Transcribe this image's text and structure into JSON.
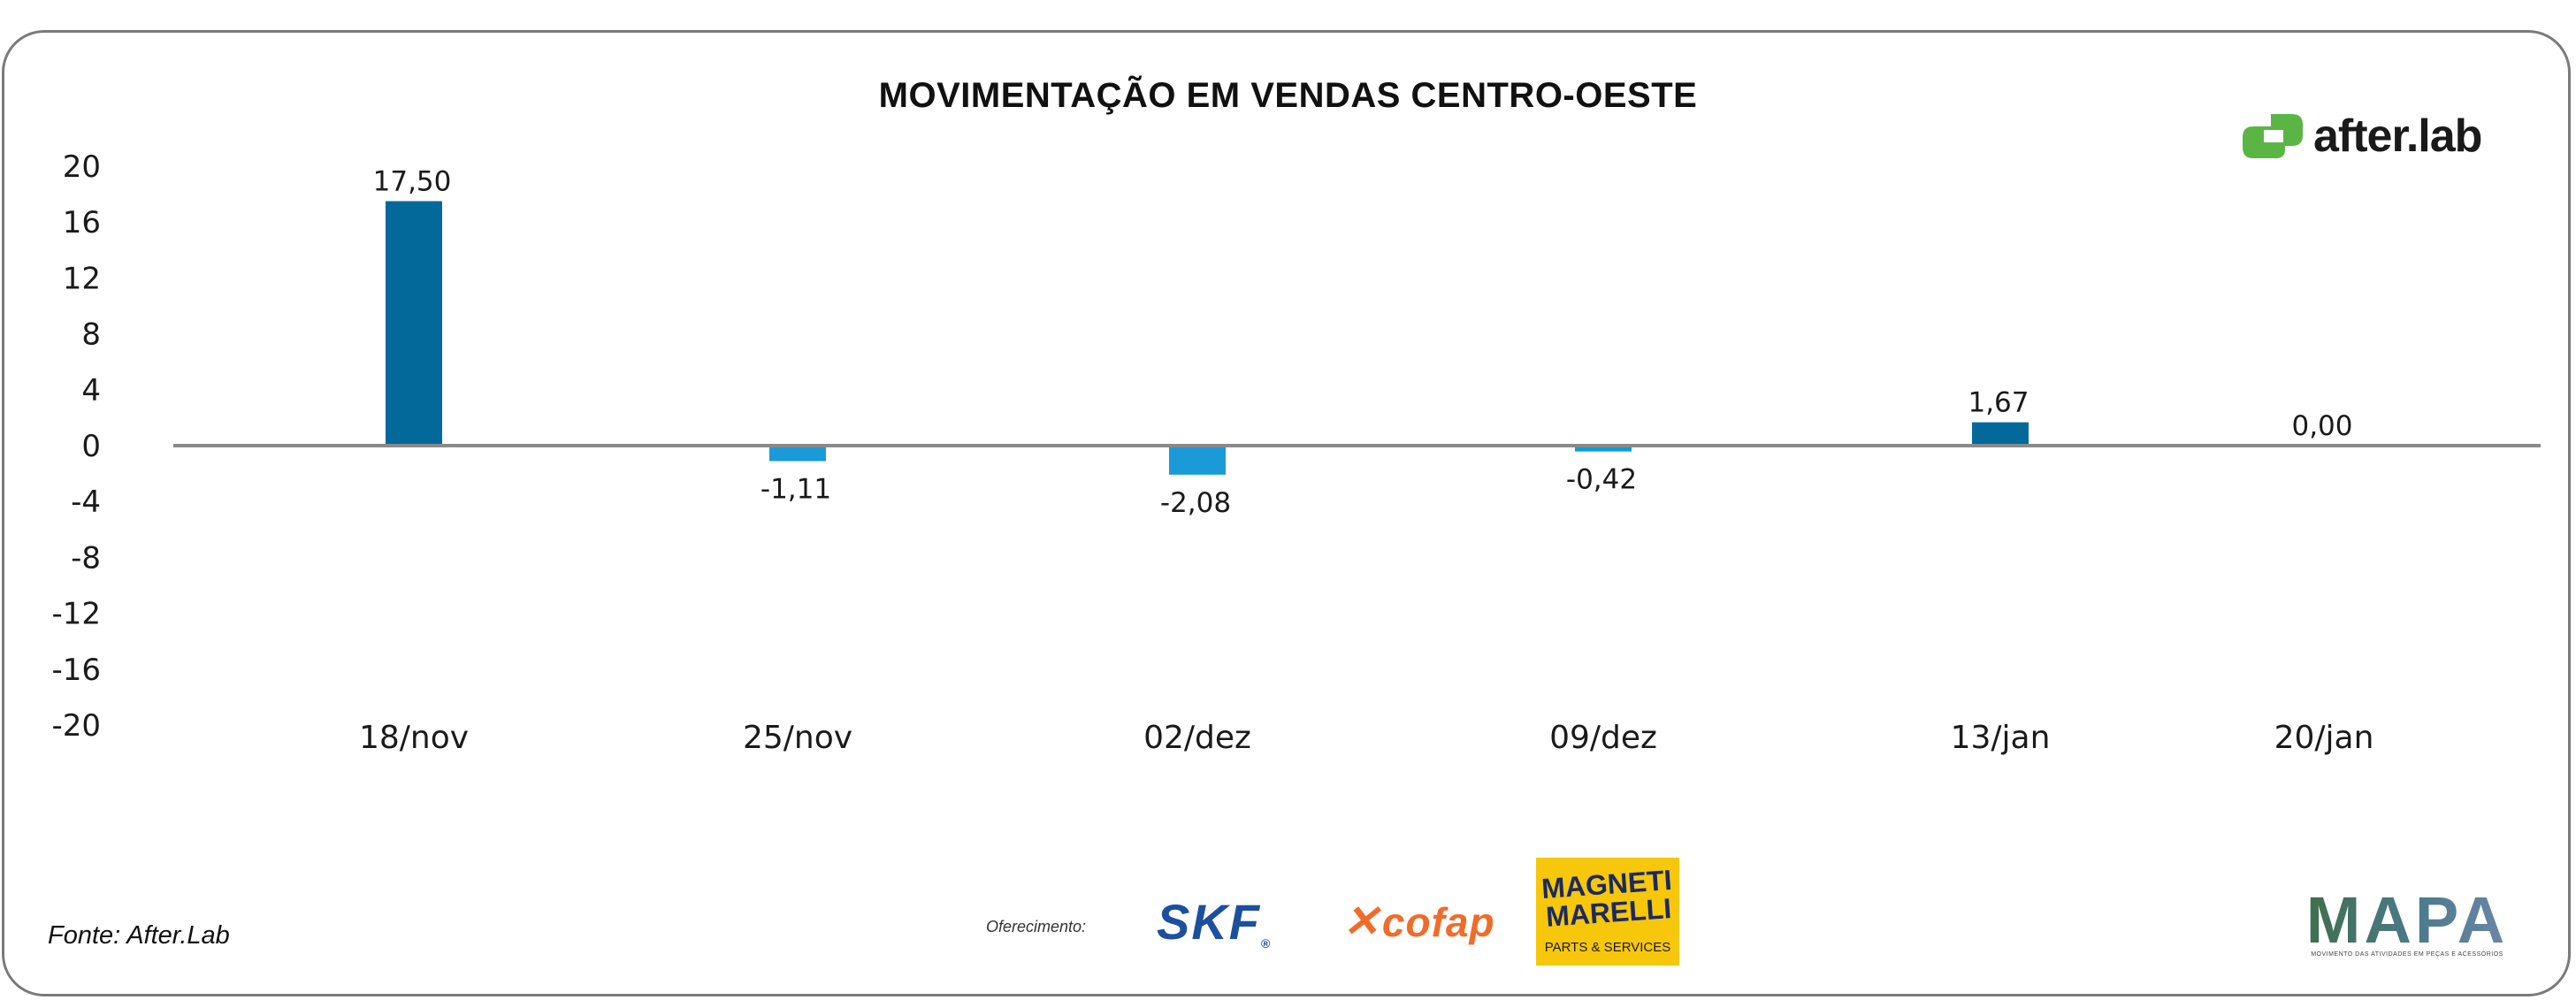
{
  "chart_data": {
    "type": "bar",
    "title": "MOVIMENTAÇÃO EM VENDAS CENTRO-OESTE",
    "categories": [
      "18/nov",
      "25/nov",
      "02/dez",
      "09/dez",
      "13/jan",
      "20/jan"
    ],
    "values": [
      17.5,
      -1.11,
      -2.08,
      -0.42,
      1.67,
      0.0
    ],
    "value_labels": [
      "17,50",
      "-1,11",
      "-2,08",
      "-0,42",
      "1,67",
      "0,00"
    ],
    "ylim": [
      -20,
      20
    ],
    "yticks": [
      20,
      16,
      12,
      8,
      4,
      0,
      -4,
      -8,
      -12,
      -16,
      -20
    ],
    "bar_colors": [
      "#03699a",
      "#1a9bd8",
      "#1a9bd8",
      "#089ed9",
      "#03699a",
      "#03699a"
    ],
    "grid": false,
    "xlabel": "",
    "ylabel": ""
  },
  "branding": {
    "logo_text": "after.lab",
    "logo_color": "#5bb545"
  },
  "footer": {
    "source": "Fonte: After.Lab",
    "sponsor_label": "Oferecimento:",
    "sponsors": {
      "skf": "SKF",
      "cofap": "cofap",
      "magneti_top": "MAGNETI MARELLI",
      "magneti_sub": "PARTS & SERVICES",
      "mapa": "MAPA",
      "mapa_sub": "MOVIMENTO DAS ATIVIDADES EM PEÇAS E ACESSÓRIOS"
    }
  }
}
